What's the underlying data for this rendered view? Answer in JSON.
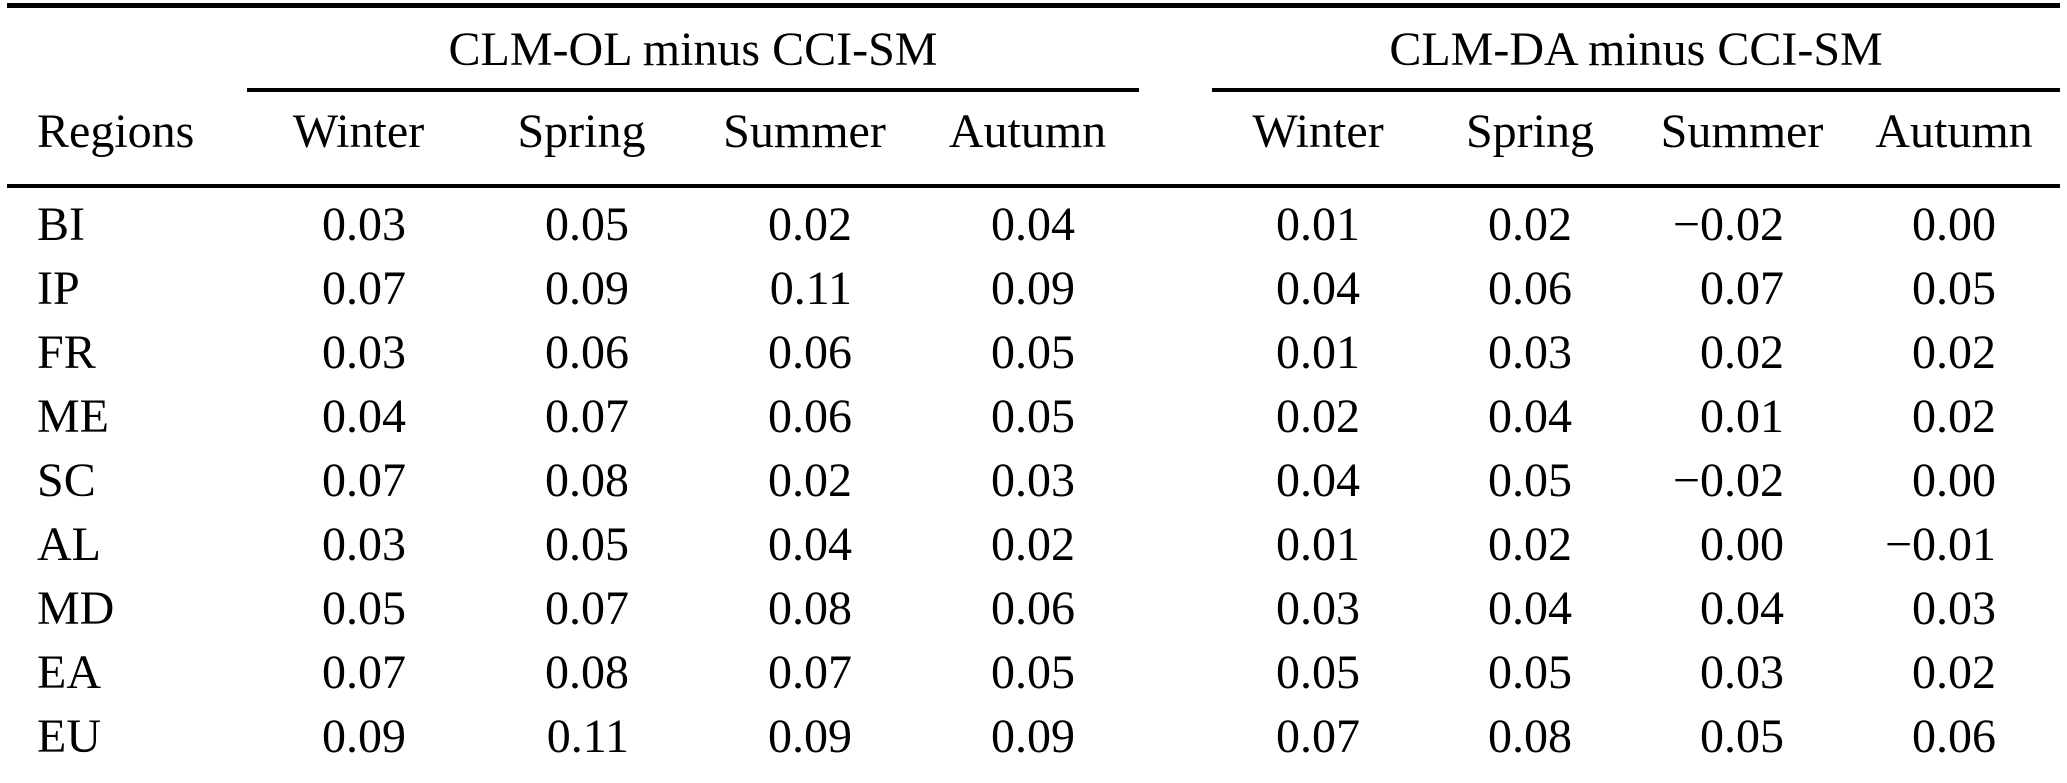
{
  "colors": {
    "text": "#000000",
    "background": "#ffffff",
    "rule": "#000000"
  },
  "table": {
    "region_column_header": "Regions",
    "group_headers": [
      "CLM-OL minus CCI-SM",
      "CLM-DA minus CCI-SM"
    ],
    "season_headers": [
      "Winter",
      "Spring",
      "Summer",
      "Autumn"
    ],
    "rows": [
      {
        "region": "BI",
        "clm_ol": [
          "0.03",
          "0.05",
          "0.02",
          "0.04"
        ],
        "clm_da": [
          "0.01",
          "0.02",
          "−0.02",
          "0.00"
        ]
      },
      {
        "region": "IP",
        "clm_ol": [
          "0.07",
          "0.09",
          "0.11",
          "0.09"
        ],
        "clm_da": [
          "0.04",
          "0.06",
          "0.07",
          "0.05"
        ]
      },
      {
        "region": "FR",
        "clm_ol": [
          "0.03",
          "0.06",
          "0.06",
          "0.05"
        ],
        "clm_da": [
          "0.01",
          "0.03",
          "0.02",
          "0.02"
        ]
      },
      {
        "region": "ME",
        "clm_ol": [
          "0.04",
          "0.07",
          "0.06",
          "0.05"
        ],
        "clm_da": [
          "0.02",
          "0.04",
          "0.01",
          "0.02"
        ]
      },
      {
        "region": "SC",
        "clm_ol": [
          "0.07",
          "0.08",
          "0.02",
          "0.03"
        ],
        "clm_da": [
          "0.04",
          "0.05",
          "−0.02",
          "0.00"
        ]
      },
      {
        "region": "AL",
        "clm_ol": [
          "0.03",
          "0.05",
          "0.04",
          "0.02"
        ],
        "clm_da": [
          "0.01",
          "0.02",
          "0.00",
          "−0.01"
        ]
      },
      {
        "region": "MD",
        "clm_ol": [
          "0.05",
          "0.07",
          "0.08",
          "0.06"
        ],
        "clm_da": [
          "0.03",
          "0.04",
          "0.04",
          "0.03"
        ]
      },
      {
        "region": "EA",
        "clm_ol": [
          "0.07",
          "0.08",
          "0.07",
          "0.05"
        ],
        "clm_da": [
          "0.05",
          "0.05",
          "0.03",
          "0.02"
        ]
      },
      {
        "region": "EU",
        "clm_ol": [
          "0.09",
          "0.11",
          "0.09",
          "0.09"
        ],
        "clm_da": [
          "0.07",
          "0.08",
          "0.05",
          "0.06"
        ]
      }
    ]
  },
  "chart_data": {
    "type": "table",
    "column_groups": [
      "CLM-OL minus CCI-SM",
      "CLM-DA minus CCI-SM"
    ],
    "columns": [
      "Regions",
      "Winter",
      "Spring",
      "Summer",
      "Autumn",
      "Winter",
      "Spring",
      "Summer",
      "Autumn"
    ],
    "rows": [
      [
        "BI",
        0.03,
        0.05,
        0.02,
        0.04,
        0.01,
        0.02,
        -0.02,
        0.0
      ],
      [
        "IP",
        0.07,
        0.09,
        0.11,
        0.09,
        0.04,
        0.06,
        0.07,
        0.05
      ],
      [
        "FR",
        0.03,
        0.06,
        0.06,
        0.05,
        0.01,
        0.03,
        0.02,
        0.02
      ],
      [
        "ME",
        0.04,
        0.07,
        0.06,
        0.05,
        0.02,
        0.04,
        0.01,
        0.02
      ],
      [
        "SC",
        0.07,
        0.08,
        0.02,
        0.03,
        0.04,
        0.05,
        -0.02,
        0.0
      ],
      [
        "AL",
        0.03,
        0.05,
        0.04,
        0.02,
        0.01,
        0.02,
        0.0,
        -0.01
      ],
      [
        "MD",
        0.05,
        0.07,
        0.08,
        0.06,
        0.03,
        0.04,
        0.04,
        0.03
      ],
      [
        "EA",
        0.07,
        0.08,
        0.07,
        0.05,
        0.05,
        0.05,
        0.03,
        0.02
      ],
      [
        "EU",
        0.09,
        0.11,
        0.09,
        0.09,
        0.07,
        0.08,
        0.05,
        0.06
      ]
    ]
  }
}
